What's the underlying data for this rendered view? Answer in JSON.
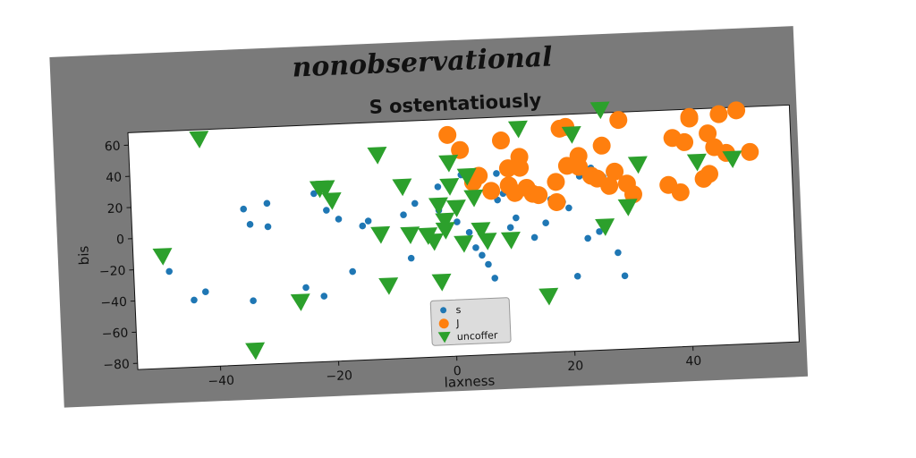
{
  "chart_data": {
    "type": "scatter",
    "suptitle": "nonobservational",
    "title": "S ostentatiously",
    "xlabel": "laxness",
    "ylabel": "bis",
    "xlim": [
      -54,
      58
    ],
    "ylim": [
      -84,
      68
    ],
    "xticks": [
      -40,
      -20,
      0,
      20,
      40
    ],
    "yticks": [
      -80,
      -60,
      -40,
      -20,
      0,
      20,
      40,
      60
    ],
    "grid": false,
    "legend_position": "lower-center",
    "colors": {
      "figure_bg": "#7a7a7a",
      "axes_bg": "#ffffff",
      "legend_bg": "#dcdcdc"
    },
    "series": [
      {
        "name": "s",
        "marker": "dot",
        "color": "#1f77b4",
        "x": [
          -48,
          -44,
          -42,
          -35,
          -34,
          -34,
          -31,
          -31,
          -25,
          -23,
          -22,
          -21,
          -19,
          -17,
          -15,
          -14,
          -8,
          -7,
          -6,
          -2,
          -2,
          -1,
          1,
          2,
          3,
          4,
          5,
          6,
          7,
          8,
          8,
          9,
          10,
          11,
          13,
          14,
          16,
          17,
          19,
          20,
          21,
          22,
          23,
          23,
          24,
          25,
          26,
          28,
          29
        ],
        "y": [
          -22,
          -41,
          -36,
          16,
          6,
          -43,
          19,
          4,
          -36,
          24,
          -42,
          13,
          7,
          -27,
          2,
          5,
          8,
          -20,
          15,
          25,
          10,
          5,
          2,
          32,
          -5,
          -15,
          -20,
          -26,
          -35,
          32,
          15,
          19,
          -3,
          3,
          23,
          -10,
          -1,
          14,
          12,
          8,
          -36,
          28,
          32,
          -12,
          33,
          -8,
          27,
          -22,
          -37
        ]
      },
      {
        "name": "J",
        "marker": "circle",
        "color": "#ff7f0e",
        "x": [
          0,
          2,
          4,
          5,
          7,
          9,
          10,
          10,
          11,
          12,
          12,
          13,
          14,
          15,
          18,
          18,
          19,
          20,
          20,
          22,
          22,
          24,
          25,
          26,
          27,
          28,
          29,
          30,
          31,
          37,
          38,
          39,
          40,
          41,
          41,
          43,
          44,
          44,
          45,
          46,
          47,
          49,
          51
        ],
        "y": [
          58,
          48,
          27,
          31,
          21,
          53,
          35,
          24,
          19,
          42,
          35,
          22,
          18,
          17,
          25,
          12,
          59,
          60,
          35,
          41,
          34,
          28,
          26,
          47,
          21,
          30,
          63,
          22,
          15,
          20,
          50,
          15,
          47,
          63,
          62,
          23,
          26,
          52,
          43,
          64,
          39,
          66,
          39
        ]
      },
      {
        "name": "uncoffer",
        "marker": "triangle_down",
        "color": "#2ca02c",
        "x": [
          -49,
          -42,
          -34,
          -26,
          -22,
          -21,
          -20,
          -12,
          -12,
          -11,
          -8,
          -7,
          -4,
          -3,
          -2,
          -2,
          -1,
          -1,
          0,
          0,
          1,
          2,
          3,
          4,
          5,
          6,
          10,
          12,
          16,
          21,
          26,
          26,
          30,
          32,
          42,
          48
        ],
        "y": [
          -12,
          62,
          -75,
          -45,
          27,
          27,
          19,
          47,
          -4,
          -37,
          26,
          -5,
          -6,
          -10,
          -36,
          13,
          -3,
          3,
          25,
          40,
          11,
          -12,
          31,
          17,
          -4,
          -11,
          -11,
          60,
          -48,
          55,
          -5,
          70,
          7,
          34,
          34,
          35
        ]
      }
    ]
  }
}
